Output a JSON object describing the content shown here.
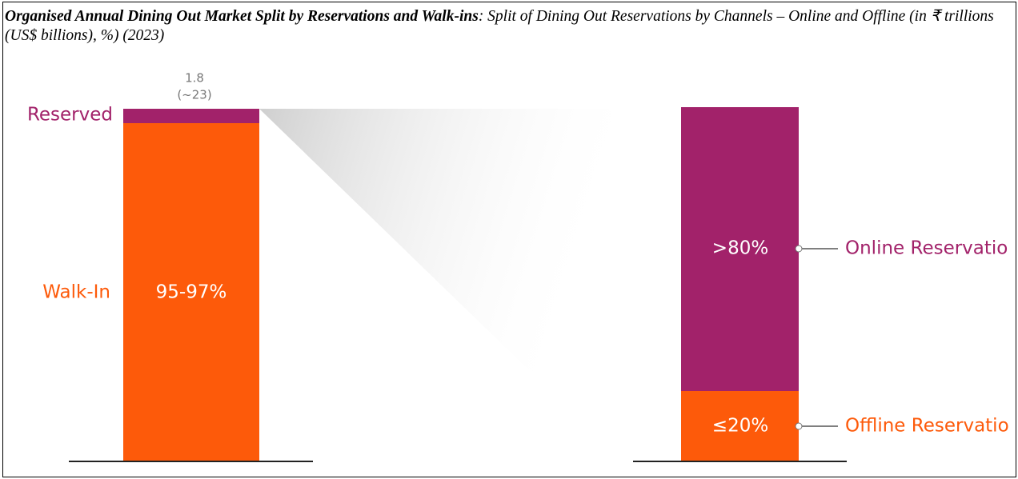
{
  "header": {
    "title": "Organised Annual Dining Out Market Split by Reservations and Walk-ins",
    "subtitle": ": Split of Dining Out Reservations by Channels – Online and Offline (in ₹ trillions (US$ billions), %) (2023)"
  },
  "left_bar": {
    "top_value": "1.8",
    "top_value_usd": "(~23)",
    "reserved_label": "Reserved",
    "walkin_label": "Walk-In",
    "walkin_share": "95-97%"
  },
  "right_bar": {
    "online_share": ">80%",
    "online_label": "Online Reservatio",
    "offline_share": "≤20%",
    "offline_label": "Offline Reservatio"
  }
}
